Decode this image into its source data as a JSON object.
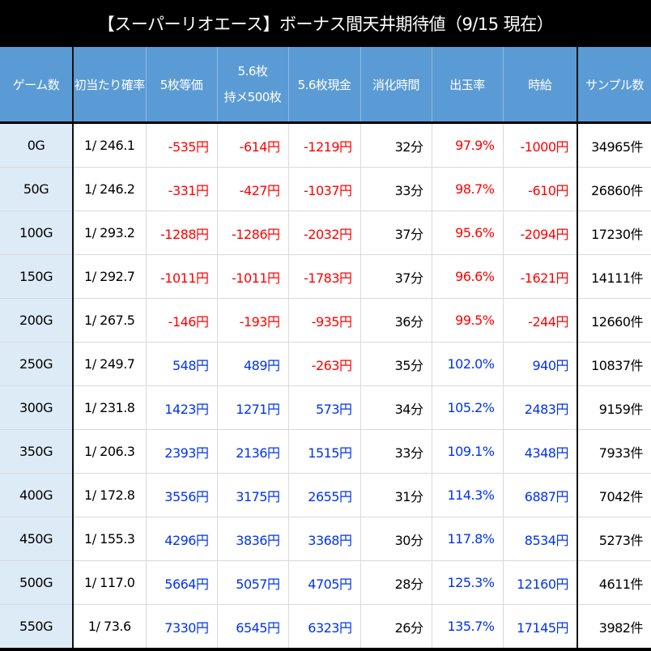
{
  "title": "【スーパーリオエース】ボーナス間天井期待値（9/15 現在）",
  "colors": {
    "header_bg": "#5b9bd5",
    "game_col_bg": "#ddebf7",
    "negative": "#ff0000",
    "positive": "#0033ee"
  },
  "columns": [
    {
      "key": "game",
      "label": "ゲーム数"
    },
    {
      "key": "rate",
      "label": "初当たり確率"
    },
    {
      "key": "v5",
      "label": "5枚等価"
    },
    {
      "key": "v56_hold",
      "label_line1": "5.6枚",
      "label_line2": "持メ500枚"
    },
    {
      "key": "v56_cash",
      "label": "5.6枚現金"
    },
    {
      "key": "time",
      "label": "消化時間"
    },
    {
      "key": "payout",
      "label": "出玉率"
    },
    {
      "key": "hourly",
      "label": "時給"
    },
    {
      "key": "samples",
      "label": "サンプル数"
    }
  ],
  "rows": [
    {
      "game": "0G",
      "rate": "1/ 246.1",
      "v5": "-535円",
      "v56_hold": "-614円",
      "v56_cash": "-1219円",
      "time": "32分",
      "payout": "97.9%",
      "hourly": "-1000円",
      "samples": "34965件",
      "sign": "neg",
      "cash_sign": "neg"
    },
    {
      "game": "50G",
      "rate": "1/ 246.2",
      "v5": "-331円",
      "v56_hold": "-427円",
      "v56_cash": "-1037円",
      "time": "33分",
      "payout": "98.7%",
      "hourly": "-610円",
      "samples": "26860件",
      "sign": "neg",
      "cash_sign": "neg"
    },
    {
      "game": "100G",
      "rate": "1/ 293.2",
      "v5": "-1288円",
      "v56_hold": "-1286円",
      "v56_cash": "-2032円",
      "time": "37分",
      "payout": "95.6%",
      "hourly": "-2094円",
      "samples": "17230件",
      "sign": "neg",
      "cash_sign": "neg"
    },
    {
      "game": "150G",
      "rate": "1/ 292.7",
      "v5": "-1011円",
      "v56_hold": "-1011円",
      "v56_cash": "-1783円",
      "time": "37分",
      "payout": "96.6%",
      "hourly": "-1621円",
      "samples": "14111件",
      "sign": "neg",
      "cash_sign": "neg"
    },
    {
      "game": "200G",
      "rate": "1/ 267.5",
      "v5": "-146円",
      "v56_hold": "-193円",
      "v56_cash": "-935円",
      "time": "36分",
      "payout": "99.5%",
      "hourly": "-244円",
      "samples": "12660件",
      "sign": "neg",
      "cash_sign": "neg"
    },
    {
      "game": "250G",
      "rate": "1/ 249.7",
      "v5": "548円",
      "v56_hold": "489円",
      "v56_cash": "-263円",
      "time": "35分",
      "payout": "102.0%",
      "hourly": "940円",
      "samples": "10837件",
      "sign": "pos",
      "cash_sign": "neg"
    },
    {
      "game": "300G",
      "rate": "1/ 231.8",
      "v5": "1423円",
      "v56_hold": "1271円",
      "v56_cash": "573円",
      "time": "34分",
      "payout": "105.2%",
      "hourly": "2483円",
      "samples": "9159件",
      "sign": "pos",
      "cash_sign": "pos"
    },
    {
      "game": "350G",
      "rate": "1/ 206.3",
      "v5": "2393円",
      "v56_hold": "2136円",
      "v56_cash": "1515円",
      "time": "33分",
      "payout": "109.1%",
      "hourly": "4348円",
      "samples": "7933件",
      "sign": "pos",
      "cash_sign": "pos"
    },
    {
      "game": "400G",
      "rate": "1/ 172.8",
      "v5": "3556円",
      "v56_hold": "3175円",
      "v56_cash": "2655円",
      "time": "31分",
      "payout": "114.3%",
      "hourly": "6887円",
      "samples": "7042件",
      "sign": "pos",
      "cash_sign": "pos"
    },
    {
      "game": "450G",
      "rate": "1/ 155.3",
      "v5": "4296円",
      "v56_hold": "3836円",
      "v56_cash": "3368円",
      "time": "30分",
      "payout": "117.8%",
      "hourly": "8534円",
      "samples": "5273件",
      "sign": "pos",
      "cash_sign": "pos"
    },
    {
      "game": "500G",
      "rate": "1/ 117.0",
      "v5": "5664円",
      "v56_hold": "5057円",
      "v56_cash": "4705円",
      "time": "28分",
      "payout": "125.3%",
      "hourly": "12160円",
      "samples": "4611件",
      "sign": "pos",
      "cash_sign": "pos"
    },
    {
      "game": "550G",
      "rate": "1/ 73.6",
      "v5": "7330円",
      "v56_hold": "6545円",
      "v56_cash": "6323円",
      "time": "26分",
      "payout": "135.7%",
      "hourly": "17145円",
      "samples": "3982件",
      "sign": "pos",
      "cash_sign": "pos"
    }
  ]
}
